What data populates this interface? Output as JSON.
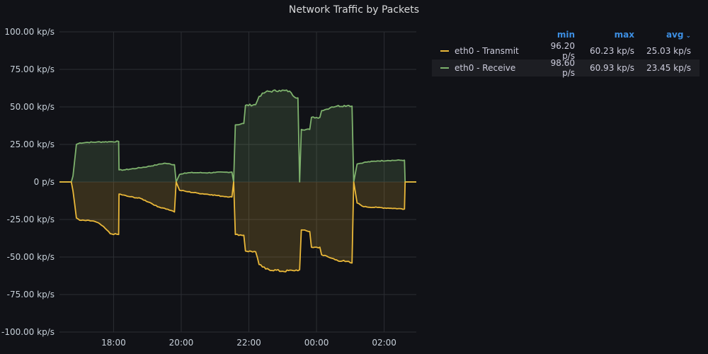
{
  "panel": {
    "title": "Network Traffic by Packets"
  },
  "colors": {
    "transmit": "#eab839",
    "receive": "#7eb26d",
    "grid": "#2c2e33",
    "axisText": "#c7d0d9",
    "headerBlue": "#3d8fe3"
  },
  "legend": {
    "headers": {
      "min": "min",
      "max": "max",
      "avg": "avg",
      "sort_icon": "chevron-down-icon"
    },
    "rows": [
      {
        "name": "eth0 - Transmit",
        "min": "96.20 p/s",
        "max": "60.23 kp/s",
        "avg": "25.03 kp/s"
      },
      {
        "name": "eth0 - Receive",
        "min": "98.60 p/s",
        "max": "60.93 kp/s",
        "avg": "23.45 kp/s"
      }
    ]
  },
  "chart_data": {
    "type": "area",
    "title": "Network Traffic by Packets",
    "xlabel": "",
    "ylabel": "",
    "x_unit": "hours",
    "xlim": [
      16.4,
      2.95
    ],
    "ylim": [
      -100,
      100
    ],
    "yticks": [
      100,
      75,
      50,
      25,
      0,
      -25,
      -50,
      -75,
      -100
    ],
    "ytick_labels": [
      "100.00 kp/s",
      "75.00 kp/s",
      "50.00 kp/s",
      "25.00 kp/s",
      "0 p/s",
      "-25.00 kp/s",
      "-50.00 kp/s",
      "-75.00 kp/s",
      "-100.00 kp/s"
    ],
    "xticks": [
      18,
      20,
      22,
      0,
      2
    ],
    "xtick_labels": [
      "18:00",
      "20:00",
      "22:00",
      "00:00",
      "02:00"
    ],
    "grid": true,
    "legend_position": "right",
    "series": [
      {
        "name": "eth0 - Receive",
        "unit": "kp/s",
        "points": [
          [
            16.4,
            0
          ],
          [
            16.75,
            0
          ],
          [
            16.8,
            4
          ],
          [
            16.9,
            25
          ],
          [
            17.0,
            26
          ],
          [
            17.2,
            26.3
          ],
          [
            17.5,
            26.6
          ],
          [
            17.9,
            26.8
          ],
          [
            18.15,
            27
          ],
          [
            18.16,
            8
          ],
          [
            18.3,
            8
          ],
          [
            18.7,
            9.2
          ],
          [
            19.0,
            10.2
          ],
          [
            19.3,
            11.5
          ],
          [
            19.5,
            12.5
          ],
          [
            19.8,
            11.5
          ],
          [
            19.85,
            0
          ],
          [
            19.95,
            5
          ],
          [
            20.1,
            6
          ],
          [
            20.4,
            6.2
          ],
          [
            20.7,
            6.1
          ],
          [
            21.0,
            6.3
          ],
          [
            21.3,
            6.5
          ],
          [
            21.5,
            6.6
          ],
          [
            21.55,
            0
          ],
          [
            21.6,
            38
          ],
          [
            21.85,
            39
          ],
          [
            21.9,
            51
          ],
          [
            22.2,
            51.5
          ],
          [
            22.3,
            57
          ],
          [
            22.5,
            60
          ],
          [
            22.9,
            61
          ],
          [
            23.2,
            60.5
          ],
          [
            23.3,
            57.5
          ],
          [
            23.45,
            56
          ],
          [
            23.5,
            0
          ],
          [
            23.55,
            35
          ],
          [
            23.8,
            35
          ],
          [
            23.85,
            43
          ],
          [
            24.1,
            43
          ],
          [
            24.15,
            47.5
          ],
          [
            24.3,
            48.5
          ],
          [
            24.45,
            50
          ],
          [
            24.6,
            50.5
          ],
          [
            24.95,
            51
          ],
          [
            25.05,
            50.5
          ],
          [
            25.1,
            0
          ],
          [
            25.2,
            12
          ],
          [
            25.4,
            13
          ],
          [
            25.8,
            14
          ],
          [
            26.1,
            14.3
          ],
          [
            26.6,
            14.5
          ],
          [
            26.62,
            0
          ],
          [
            26.95,
            0
          ]
        ]
      },
      {
        "name": "eth0 - Transmit",
        "unit": "kp/s",
        "points": [
          [
            16.4,
            0
          ],
          [
            16.75,
            0
          ],
          [
            16.8,
            -6
          ],
          [
            16.9,
            -24
          ],
          [
            17.0,
            -25.5
          ],
          [
            17.4,
            -26
          ],
          [
            17.6,
            -28
          ],
          [
            17.8,
            -32
          ],
          [
            17.9,
            -34.5
          ],
          [
            18.15,
            -35
          ],
          [
            18.16,
            -8
          ],
          [
            18.4,
            -9.5
          ],
          [
            18.8,
            -11
          ],
          [
            19.1,
            -14
          ],
          [
            19.3,
            -16.5
          ],
          [
            19.5,
            -17.5
          ],
          [
            19.7,
            -19
          ],
          [
            19.8,
            -20
          ],
          [
            19.85,
            0
          ],
          [
            19.95,
            -5.5
          ],
          [
            20.2,
            -6.5
          ],
          [
            20.5,
            -7.5
          ],
          [
            20.9,
            -8.5
          ],
          [
            21.2,
            -9.5
          ],
          [
            21.5,
            -10
          ],
          [
            21.55,
            0
          ],
          [
            21.6,
            -35
          ],
          [
            21.85,
            -35.5
          ],
          [
            21.9,
            -46
          ],
          [
            22.2,
            -46.5
          ],
          [
            22.3,
            -55
          ],
          [
            22.5,
            -58
          ],
          [
            23.0,
            -59.5
          ],
          [
            23.3,
            -59
          ],
          [
            23.5,
            -58.5
          ],
          [
            23.55,
            -32
          ],
          [
            23.8,
            -33
          ],
          [
            23.85,
            -43.5
          ],
          [
            24.1,
            -43.5
          ],
          [
            24.15,
            -48.5
          ],
          [
            24.4,
            -50.5
          ],
          [
            24.6,
            -52
          ],
          [
            24.85,
            -53
          ],
          [
            25.05,
            -54
          ],
          [
            25.1,
            0
          ],
          [
            25.2,
            -14
          ],
          [
            25.4,
            -16.5
          ],
          [
            25.8,
            -17
          ],
          [
            26.2,
            -17.5
          ],
          [
            26.6,
            -18
          ],
          [
            26.62,
            0
          ],
          [
            26.95,
            0
          ]
        ]
      }
    ]
  }
}
